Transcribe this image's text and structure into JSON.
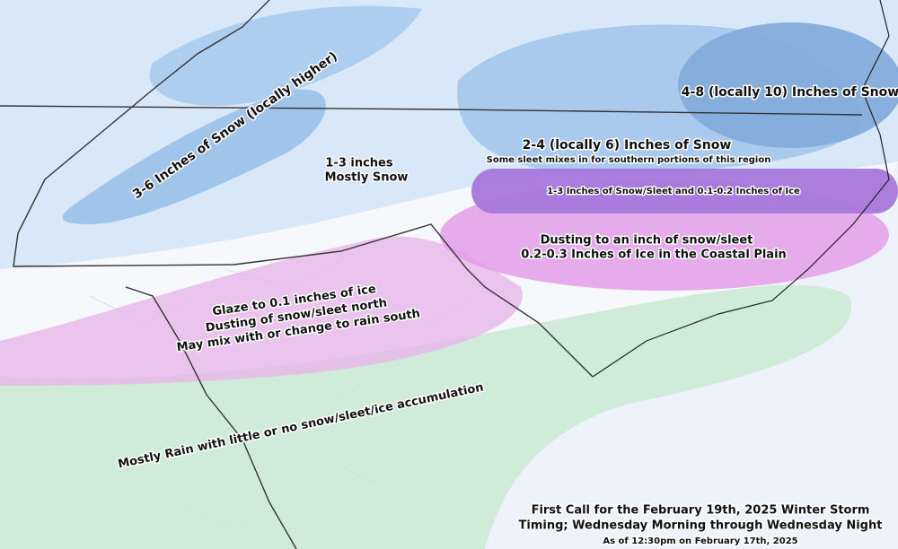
{
  "regions": {
    "heavy_west": {
      "label": "3-6 Inches of Snow (locally higher)"
    },
    "light_snow": {
      "line1": "1-3 inches",
      "line2": "Mostly Snow"
    },
    "heavy_northeast": {
      "label": "4-8 (locally 10) Inches of Snow"
    },
    "moderate_snow": {
      "label": "2-4 (locally 6) Inches of Snow",
      "note": "Some sleet mixes in for southern portions of this region"
    },
    "snow_ice": {
      "label": "1-3 Inches of Snow/Sleet and 0.1-0.2 Inches of Ice"
    },
    "coastal_ice": {
      "line1": "Dusting to an inch of snow/sleet",
      "line2": "0.2-0.3 Inches of Ice in the Coastal Plain"
    },
    "glaze": {
      "line1": "Glaze to 0.1 inches of ice",
      "line2": "Dusting of snow/sleet north",
      "line3": "May mix with or change to rain south"
    },
    "rain": {
      "label": "Mostly Rain with little or no snow/sleet/ice accumulation"
    }
  },
  "footer": {
    "title": "First Call for the February 19th, 2025 Winter Storm",
    "timing": "Timing; Wednesday Morning through Wednesday Night",
    "issued": "As of 12:30pm  on February 17th, 2025"
  }
}
